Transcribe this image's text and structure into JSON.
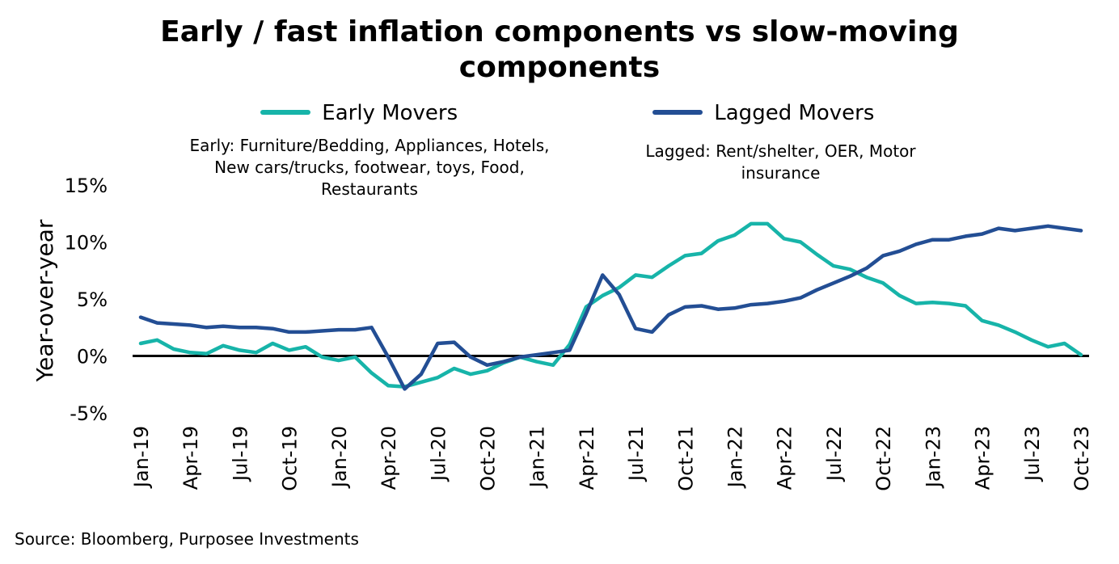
{
  "colors": {
    "early": "#17b4a9",
    "lagged": "#234e94",
    "zero_line": "#000000"
  },
  "chart_data": {
    "type": "line",
    "title": "Early / fast inflation components vs slow-moving components",
    "title_lines": [
      "Early / fast inflation components vs slow-moving",
      "components"
    ],
    "xlabel": "",
    "ylabel": "Year-over-year",
    "ylim": [
      -5,
      15
    ],
    "yticks": [
      -5,
      0,
      5,
      10,
      15
    ],
    "ytick_labels": [
      "-5%",
      "0%",
      "5%",
      "10%",
      "15%"
    ],
    "x_labels": [
      "Jan-19",
      "Apr-19",
      "Jul-19",
      "Oct-19",
      "Jan-20",
      "Apr-20",
      "Jul-20",
      "Oct-20",
      "Jan-21",
      "Apr-21",
      "Jul-21",
      "Oct-21",
      "Jan-22",
      "Apr-22",
      "Jul-22",
      "Oct-22",
      "Jan-23",
      "Apr-23",
      "Jul-23",
      "Oct-23"
    ],
    "x_label_step": 3,
    "num_points": 58,
    "series": [
      {
        "name": "Early Movers",
        "color": "#17b4a9",
        "values": [
          1.1,
          1.4,
          0.6,
          0.3,
          0.2,
          0.9,
          0.5,
          0.3,
          1.1,
          0.5,
          0.8,
          -0.1,
          -0.4,
          -0.1,
          -1.5,
          -2.6,
          -2.7,
          -2.3,
          -1.9,
          -1.1,
          -1.6,
          -1.3,
          -0.6,
          -0.1,
          -0.5,
          -0.8,
          1.0,
          4.3,
          5.3,
          6.0,
          7.1,
          6.9,
          7.9,
          8.8,
          9.0,
          10.1,
          10.6,
          11.6,
          11.6,
          10.3,
          10.0,
          8.9,
          7.9,
          7.6,
          6.9,
          6.4,
          5.3,
          4.6,
          4.7,
          4.6,
          4.4,
          3.1,
          2.7,
          2.1,
          1.4,
          0.8,
          1.1,
          0.1
        ]
      },
      {
        "name": "Lagged Movers",
        "color": "#234e94",
        "values": [
          3.4,
          2.9,
          2.8,
          2.7,
          2.5,
          2.6,
          2.5,
          2.5,
          2.4,
          2.1,
          2.1,
          2.2,
          2.3,
          2.3,
          2.5,
          -0.1,
          -2.9,
          -1.6,
          1.1,
          1.2,
          -0.1,
          -0.8,
          -0.5,
          -0.1,
          0.1,
          0.3,
          0.5,
          3.7,
          7.1,
          5.4,
          2.4,
          2.1,
          3.6,
          4.3,
          4.4,
          4.1,
          4.2,
          4.5,
          4.6,
          4.8,
          5.1,
          5.8,
          6.4,
          7.0,
          7.7,
          8.8,
          9.2,
          9.8,
          10.2,
          10.2,
          10.5,
          10.7,
          11.2,
          11.0,
          11.2,
          11.4,
          11.2,
          11.0
        ]
      }
    ],
    "legend": {
      "position": "top",
      "items": [
        "Early Movers",
        "Lagged Movers"
      ]
    },
    "annotations": [
      "Early: Furniture/Bedding, Appliances, Hotels, New cars/trucks, footwear, toys, Food, Restaurants",
      "Lagged: Rent/shelter, OER, Motor insurance"
    ],
    "grid": false,
    "zero_line": true
  },
  "notes": {
    "early": "Early: Furniture/Bedding, Appliances, Hotels, New cars/trucks, footwear, toys, Food, Restaurants",
    "lagged": "Lagged: Rent/shelter, OER, Motor insurance"
  },
  "source": "Source: Bloomberg, Purposee Investments"
}
